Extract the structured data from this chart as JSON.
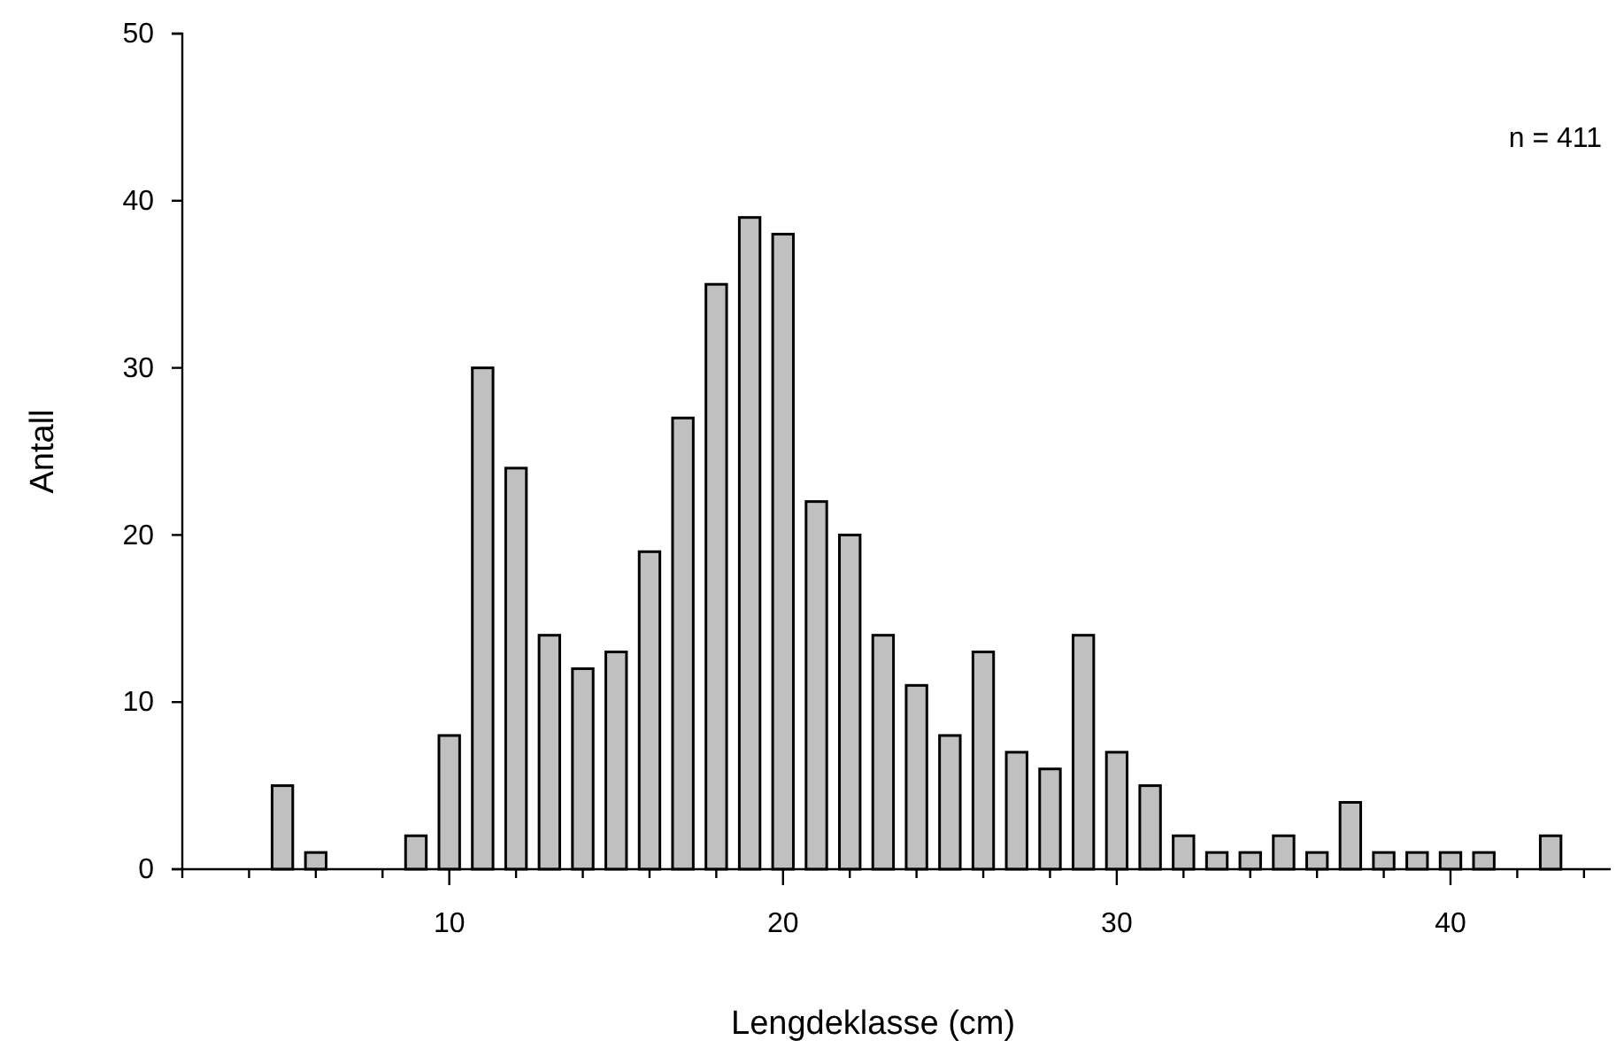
{
  "chart_data": {
    "type": "bar",
    "xlabel": "Lengdeklasse (cm)",
    "ylabel": "Antall",
    "annotations": [
      "n = 411"
    ],
    "x": [
      5,
      6,
      9,
      10,
      11,
      12,
      13,
      14,
      15,
      16,
      17,
      18,
      19,
      20,
      21,
      22,
      23,
      24,
      25,
      26,
      27,
      28,
      29,
      30,
      31,
      32,
      33,
      34,
      35,
      36,
      37,
      38,
      39,
      40,
      41,
      43
    ],
    "values": [
      5,
      1,
      2,
      8,
      30,
      24,
      14,
      12,
      13,
      19,
      27,
      35,
      39,
      38,
      22,
      20,
      14,
      11,
      8,
      13,
      7,
      6,
      14,
      7,
      5,
      2,
      1,
      1,
      2,
      1,
      4,
      1,
      1,
      1,
      1,
      2
    ],
    "color": "#c0c0c0",
    "xlim": [
      2,
      44.8
    ],
    "xticks": [
      {
        "value": 2,
        "label": null
      },
      {
        "value": 4,
        "label": null
      },
      {
        "value": 6,
        "label": null
      },
      {
        "value": 8,
        "label": null
      },
      10,
      {
        "value": 12,
        "label": null
      },
      {
        "value": 14,
        "label": null
      },
      {
        "value": 16,
        "label": null
      },
      {
        "value": 18,
        "label": null
      },
      20,
      {
        "value": 22,
        "label": null
      },
      {
        "value": 24,
        "label": null
      },
      {
        "value": 26,
        "label": null
      },
      {
        "value": 28,
        "label": null
      },
      30,
      {
        "value": 32,
        "label": null
      },
      {
        "value": 34,
        "label": null
      },
      {
        "value": 36,
        "label": null
      },
      {
        "value": 38,
        "label": null
      },
      40,
      {
        "value": 42,
        "label": null
      },
      {
        "value": 44,
        "label": null
      }
    ],
    "ylim": [
      0,
      50
    ],
    "yticks": [
      0,
      10,
      20,
      30,
      40,
      50
    ],
    "grid": false
  }
}
